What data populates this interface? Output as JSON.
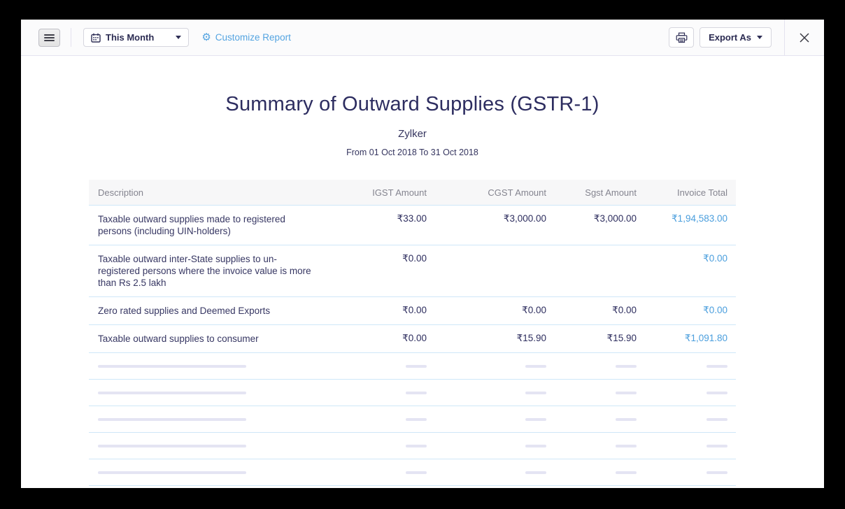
{
  "toolbar": {
    "period_selector_label": "This Month",
    "customize_report_label": "Customize Report",
    "export_as_label": "Export As"
  },
  "icons": {
    "gear": "⚙"
  },
  "report": {
    "title": "Summary of Outward Supplies (GSTR-1)",
    "organization": "Zylker",
    "date_range": "From 01 Oct 2018 To 31 Oct 2018"
  },
  "table": {
    "columns": [
      "Description",
      "IGST Amount",
      "CGST Amount",
      "Sgst Amount",
      "Invoice Total"
    ],
    "rows": [
      {
        "description": "Taxable outward supplies made to registered persons (including UIN-holders)",
        "igst": "₹33.00",
        "cgst": "₹3,000.00",
        "sgst": "₹3,000.00",
        "total": "₹1,94,583.00"
      },
      {
        "description": "Taxable outward inter-State supplies to un-registered persons where the invoice value is more than Rs 2.5 lakh",
        "igst": "₹0.00",
        "cgst": "",
        "sgst": "",
        "total": "₹0.00"
      },
      {
        "description": "Zero rated supplies and Deemed Exports",
        "igst": "₹0.00",
        "cgst": "₹0.00",
        "sgst": "₹0.00",
        "total": "₹0.00"
      },
      {
        "description": "Taxable outward supplies to consumer",
        "igst": "₹0.00",
        "cgst": "₹15.90",
        "sgst": "₹15.90",
        "total": "₹1,091.80"
      }
    ],
    "placeholder_row_count": 5
  },
  "colors": {
    "accent_blue": "#54a4e1",
    "link_value_blue": "#4a9edd",
    "navy_text": "#2d2d60",
    "header_gray": "#84848f",
    "row_separator": "#cfe7f8",
    "placeholder_bar": "#e4e4f3"
  }
}
